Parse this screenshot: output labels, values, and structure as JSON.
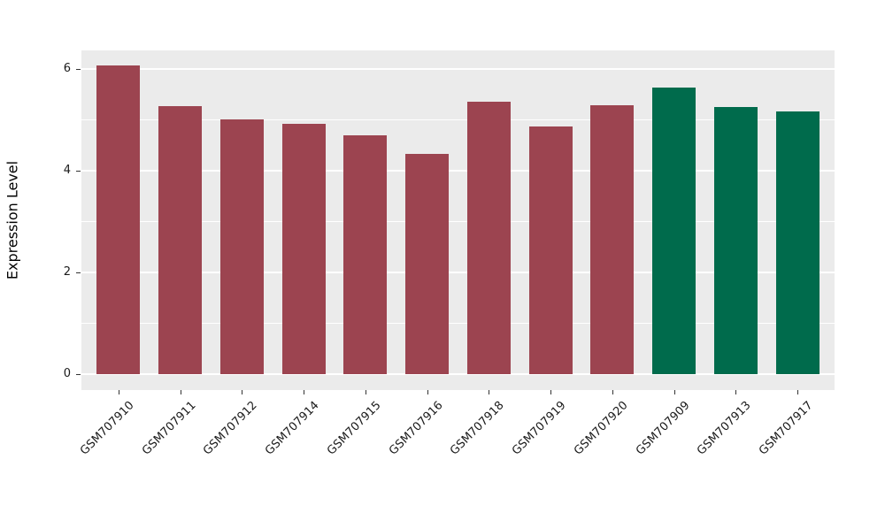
{
  "chart_data": {
    "type": "bar",
    "title": "",
    "xlabel": "",
    "ylabel": "Expression Level",
    "categories": [
      "GSM707910",
      "GSM707911",
      "GSM707912",
      "GSM707914",
      "GSM707915",
      "GSM707916",
      "GSM707918",
      "GSM707919",
      "GSM707920",
      "GSM707909",
      "GSM707913",
      "GSM707917"
    ],
    "values": [
      6.08,
      5.28,
      5.01,
      4.93,
      4.7,
      4.33,
      5.36,
      4.88,
      5.3,
      5.64,
      5.25,
      5.17
    ],
    "colors": [
      "#9C4450",
      "#9C4450",
      "#9C4450",
      "#9C4450",
      "#9C4450",
      "#9C4450",
      "#9C4450",
      "#9C4450",
      "#9C4450",
      "#006B4C",
      "#006B4C",
      "#006B4C"
    ],
    "group_colors": {
      "group1": "#9C4450",
      "group2": "#006B4C"
    },
    "ylim": [
      -0.31,
      6.37
    ],
    "yticks_major": [
      0,
      2,
      4,
      6
    ],
    "yticks_minor": [
      1,
      3,
      5
    ],
    "grid": true,
    "legend_position": "none",
    "panel_bg": "#EBEBEB",
    "grid_color": "#FFFFFF",
    "bar_width_frac": 0.7
  }
}
